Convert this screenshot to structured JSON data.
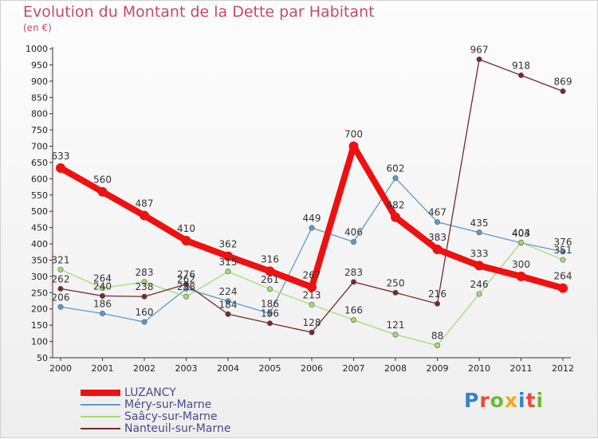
{
  "title": "Evolution du Montant de la Dette par Habitant",
  "unit": "(en €)",
  "logo": "Proxiti",
  "logo_colors": [
    "#2f86c8",
    "#e84d3a",
    "#6fb83a",
    "#f2a81d",
    "#2f86c8",
    "#e84d3a",
    "#6fb83a"
  ],
  "chart_data": {
    "type": "line",
    "x": [
      "2000",
      "2001",
      "2002",
      "2003",
      "2004",
      "2005",
      "2006",
      "2007",
      "2008",
      "2009",
      "2010",
      "2011",
      "2012"
    ],
    "ylim": [
      50,
      1000
    ],
    "yticks": [
      50,
      100,
      150,
      200,
      250,
      300,
      350,
      400,
      450,
      500,
      550,
      600,
      650,
      700,
      750,
      800,
      850,
      900,
      950,
      1000
    ],
    "grid": false,
    "legend_position": "bottom-left",
    "series": [
      {
        "name": "LUZANCY",
        "values": [
          633,
          560,
          487,
          410,
          362,
          316,
          267,
          700,
          482,
          383,
          333,
          300,
          264
        ],
        "color": "#ee1111",
        "emphasis": true
      },
      {
        "name": "Méry-sur-Marne",
        "values": [
          206,
          186,
          160,
          262,
          224,
          186,
          449,
          406,
          602,
          467,
          435,
          403,
          376
        ],
        "color": "#5b9bd0"
      },
      {
        "name": "Saâcy-sur-Marne",
        "values": [
          321,
          264,
          283,
          238,
          315,
          261,
          213,
          166,
          121,
          88,
          246,
          404,
          351
        ],
        "color": "#a3dc74"
      },
      {
        "name": "Nanteuil-sur-Marne",
        "values": [
          262,
          240,
          238,
          276,
          184,
          156,
          128,
          283,
          250,
          216,
          967,
          918,
          869
        ],
        "color": "#7a2828"
      }
    ]
  }
}
